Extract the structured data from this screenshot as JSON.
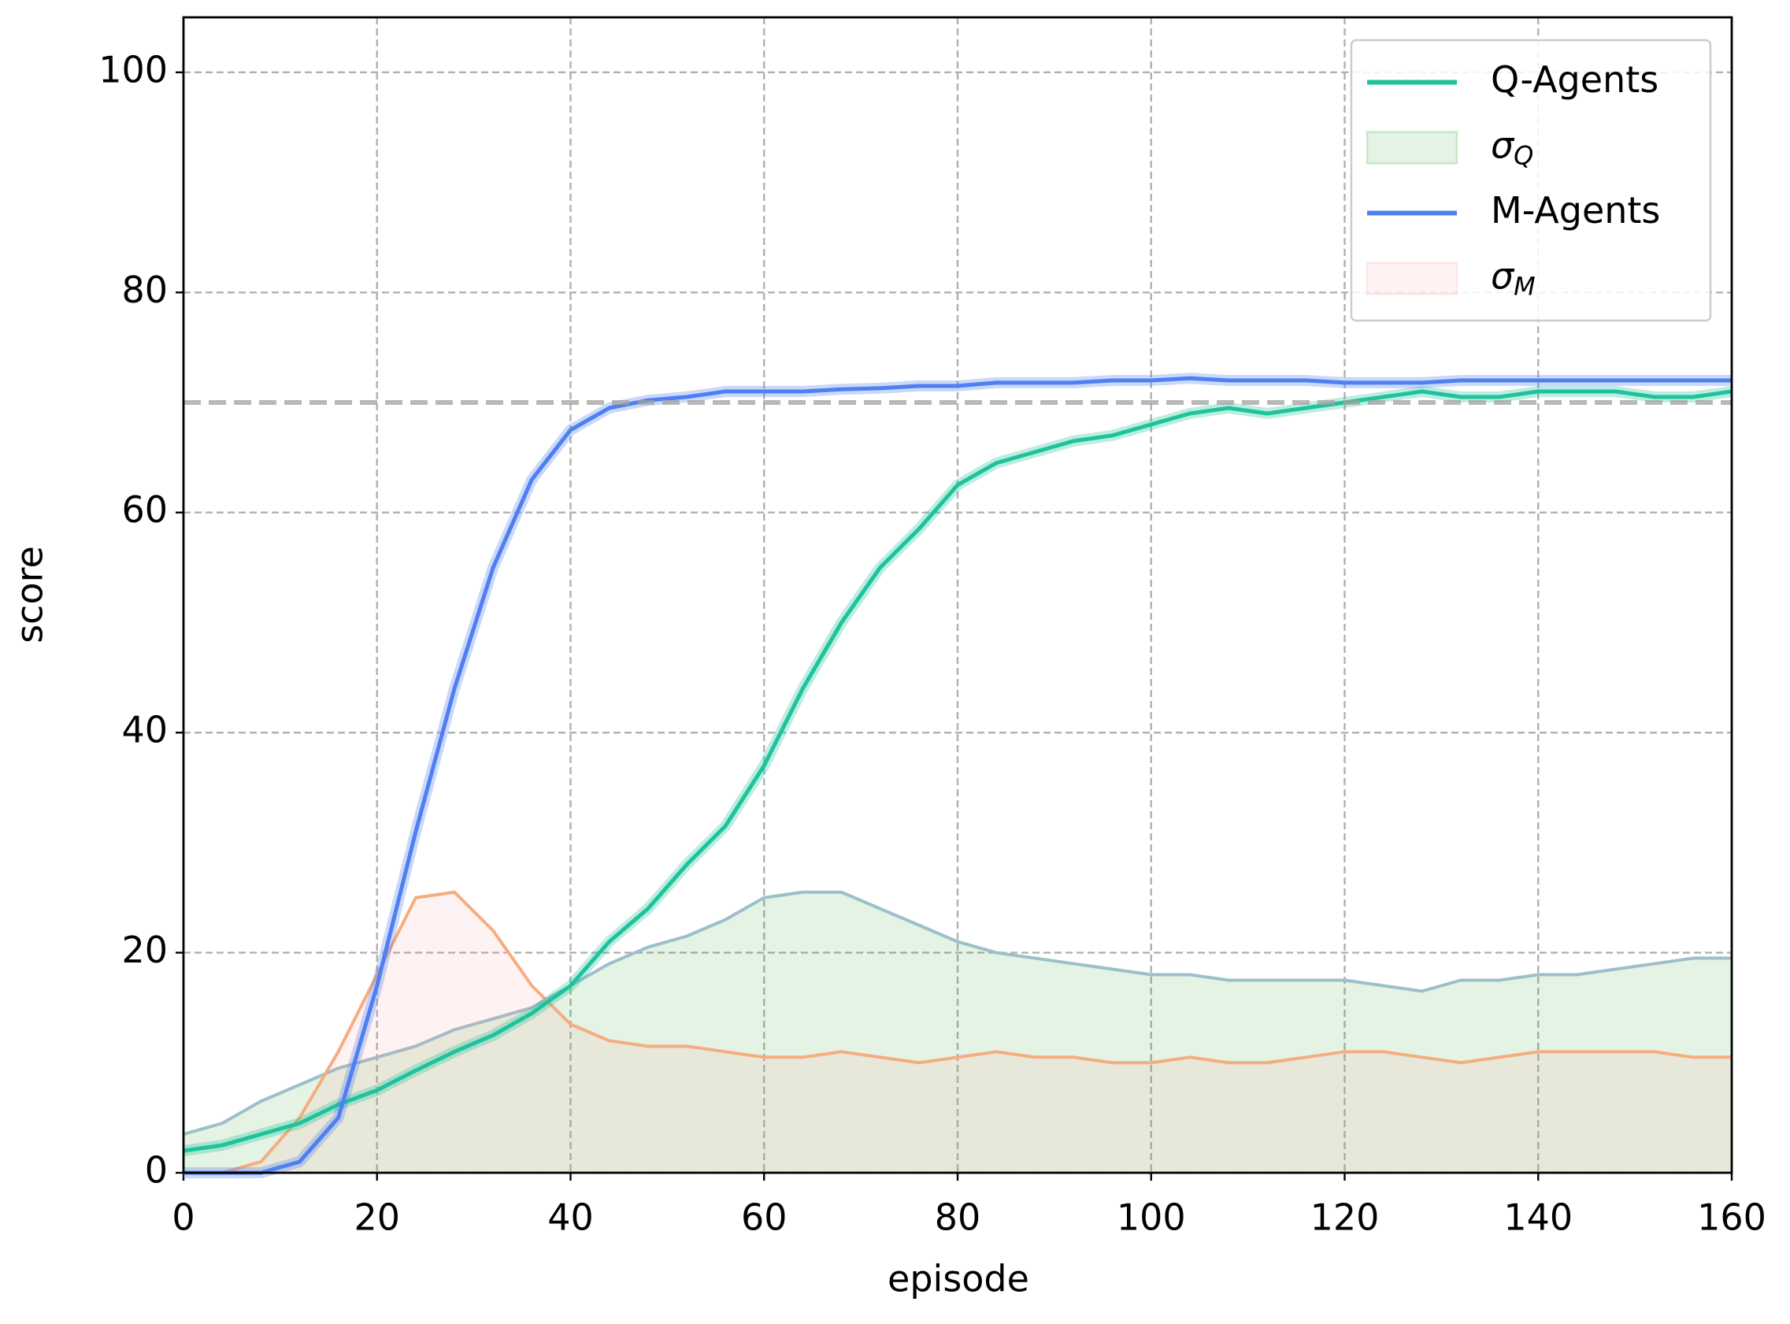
{
  "chart_data": {
    "type": "line",
    "x_label": "episode",
    "y_label": "score",
    "x": [
      0,
      4,
      8,
      12,
      16,
      20,
      24,
      28,
      32,
      36,
      40,
      44,
      48,
      52,
      56,
      60,
      64,
      68,
      72,
      76,
      80,
      84,
      88,
      92,
      96,
      100,
      104,
      108,
      112,
      116,
      120,
      124,
      128,
      132,
      136,
      140,
      144,
      148,
      152,
      156,
      160
    ],
    "series": [
      {
        "name": "Q-Agents",
        "color": "#1fc39b",
        "fill": false,
        "values": [
          2,
          2.5,
          3.5,
          4.5,
          6.2,
          7.5,
          9.3,
          11,
          12.5,
          14.5,
          17,
          21,
          24,
          28,
          31.5,
          37,
          44,
          50,
          55,
          58.5,
          62.5,
          64.5,
          65.5,
          66.5,
          67,
          68,
          69,
          69.5,
          69,
          69.5,
          70,
          70.5,
          71,
          70.5,
          70.5,
          71,
          71,
          71,
          70.5,
          70.5,
          71
        ]
      },
      {
        "name": "σQ",
        "color": "#2ca02c",
        "edgecolor": "#9cbfca",
        "fill": true,
        "values": [
          3.5,
          4.5,
          6.5,
          8,
          9.5,
          10.5,
          11.5,
          13,
          14,
          15,
          17,
          19,
          20.5,
          21.5,
          23,
          25,
          25.5,
          25.5,
          24,
          22.5,
          21,
          20,
          19.5,
          19,
          18.5,
          18,
          18,
          17.5,
          17.5,
          17.5,
          17.5,
          17,
          16.5,
          17.5,
          17.5,
          18,
          18,
          18.5,
          19,
          19.5,
          19.5
        ]
      },
      {
        "name": "M-Agents",
        "color": "#4f7ff0",
        "fill": false,
        "values": [
          0,
          0,
          0,
          1,
          5,
          17,
          31,
          44,
          55,
          63,
          67.5,
          69.5,
          70.2,
          70.5,
          71,
          71,
          71,
          71.2,
          71.3,
          71.5,
          71.5,
          71.8,
          71.8,
          71.8,
          72,
          72,
          72.2,
          72,
          72,
          72,
          71.8,
          71.8,
          71.8,
          72,
          72,
          72,
          72,
          72,
          72,
          72,
          72
        ]
      },
      {
        "name": "σM",
        "color": "#ff9c9c",
        "edgecolor": "#f5ad80",
        "fill": true,
        "values": [
          0,
          0,
          1,
          5,
          11,
          18,
          25,
          25.5,
          22,
          17,
          13.5,
          12,
          11.5,
          11.5,
          11,
          10.5,
          10.5,
          11,
          10.5,
          10,
          10.5,
          11,
          10.5,
          10.5,
          10,
          10,
          10.5,
          10,
          10,
          10.5,
          11,
          11,
          10.5,
          10,
          10.5,
          11,
          11,
          11,
          11,
          10.5,
          10.5
        ]
      }
    ],
    "hline": 70,
    "xlim": [
      0,
      160
    ],
    "ylim": [
      0,
      105
    ],
    "xticks": [
      0,
      20,
      40,
      60,
      80,
      100,
      120,
      140,
      160
    ],
    "yticks": [
      0,
      20,
      40,
      60,
      80,
      100
    ],
    "grid": true,
    "legend": "upper right"
  }
}
